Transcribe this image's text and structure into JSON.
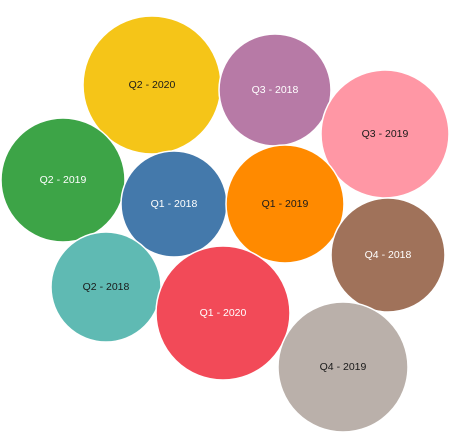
{
  "chart_data": {
    "type": "packed-bubble",
    "title": "",
    "legend": "none",
    "series": [
      {
        "name": "Q2 - 2020",
        "color": "#F5C518",
        "text_color": "#1a1a1a"
      },
      {
        "name": "Q3 - 2018",
        "color": "#B77AA6",
        "text_color": "#ffffff"
      },
      {
        "name": "Q3 - 2019",
        "color": "#FF97A5",
        "text_color": "#1a1a1a"
      },
      {
        "name": "Q2 - 2019",
        "color": "#3DA447",
        "text_color": "#ffffff"
      },
      {
        "name": "Q1 - 2018",
        "color": "#4479AB",
        "text_color": "#ffffff"
      },
      {
        "name": "Q1 - 2019",
        "color": "#FF8A00",
        "text_color": "#1a1a1a"
      },
      {
        "name": "Q4 - 2018",
        "color": "#A0725A",
        "text_color": "#ffffff"
      },
      {
        "name": "Q2 - 2018",
        "color": "#5FBAB3",
        "text_color": "#1a1a1a"
      },
      {
        "name": "Q1 - 2020",
        "color": "#F24A58",
        "text_color": "#ffffff"
      },
      {
        "name": "Q4 - 2019",
        "color": "#BAB0AA",
        "text_color": "#1a1a1a"
      }
    ]
  }
}
